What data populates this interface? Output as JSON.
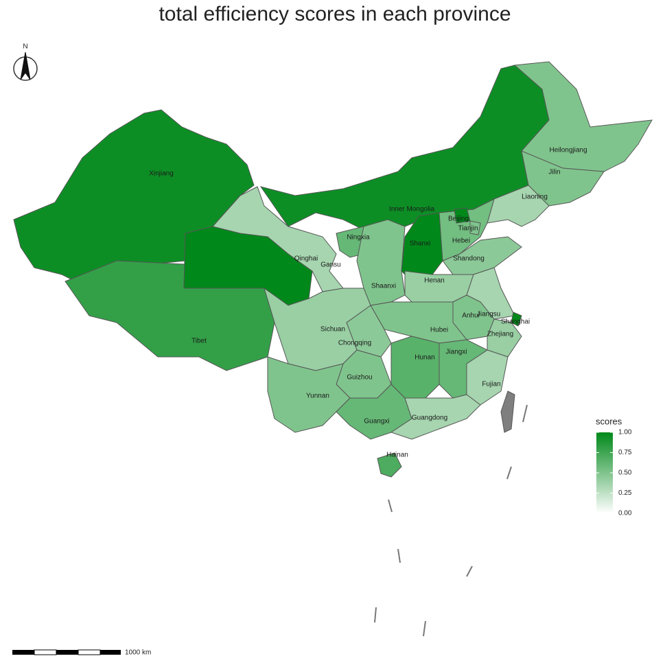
{
  "chart_data": {
    "type": "choropleth",
    "title": "total efficiency scores in each province",
    "compass": "N",
    "scale_label": "1000 km",
    "legend_title": "scores",
    "clim": [
      0,
      1
    ],
    "cticks": [
      {
        "value": 0,
        "label": "0.00"
      },
      {
        "value": 0.25,
        "label": "0.25"
      },
      {
        "value": 0.5,
        "label": "0.50"
      },
      {
        "value": 0.75,
        "label": "0.75"
      },
      {
        "value": 1,
        "label": "1.00"
      }
    ],
    "low_color": "#ffffff",
    "high_color": "#00881a",
    "missing_color": "#7f7f7f",
    "categories": [
      "Xinjiang",
      "Tibet",
      "Qinghai",
      "Gansu",
      "Inner Mongolia",
      "Heilongjiang",
      "Jilin",
      "Liaoning",
      "Hebei",
      "Beijing",
      "Tianjin",
      "Shanxi",
      "Ningxia",
      "Shaanxi",
      "Shandong",
      "Henan",
      "Jiangsu",
      "Anhui",
      "Shanghai",
      "Zhejiang",
      "Fujian",
      "Jiangxi",
      "Hubei",
      "Hunan",
      "Chongqing",
      "Sichuan",
      "Guizhou",
      "Yunnan",
      "Guangxi",
      "Guangdong",
      "Hainan"
    ],
    "values": [
      0.95,
      0.8,
      1,
      0.35,
      0.95,
      0.5,
      0.5,
      0.35,
      0.55,
      1,
      0.5,
      1,
      0.6,
      0.5,
      0.45,
      0.4,
      0.35,
      0.5,
      1,
      0.4,
      0.35,
      0.6,
      0.5,
      0.65,
      0.45,
      0.4,
      0.5,
      0.5,
      0.6,
      0.35,
      0.7
    ]
  }
}
